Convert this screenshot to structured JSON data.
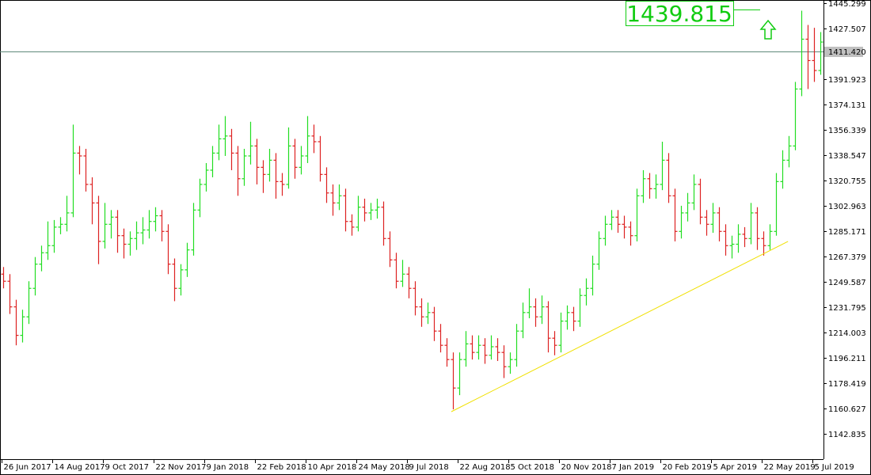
{
  "chart_data": {
    "type": "ohlc",
    "up_color": "#22dd22",
    "down_color": "#dd2222",
    "xlim": [
      -0.5,
      129.5
    ],
    "ylim": [
      1125.04,
      1447.52
    ],
    "xticks": [
      {
        "value": 0,
        "label": "26 Jun 2017"
      },
      {
        "value": 8,
        "label": "14 Aug 2017"
      },
      {
        "value": 16,
        "label": "9 Oct 2017"
      },
      {
        "value": 24,
        "label": "22 Nov 2017"
      },
      {
        "value": 32,
        "label": "9 Jan 2018"
      },
      {
        "value": 40,
        "label": "22 Feb 2018"
      },
      {
        "value": 48,
        "label": "10 Apr 2018"
      },
      {
        "value": 56,
        "label": "24 May 2018"
      },
      {
        "value": 64,
        "label": "9 Jul 2018"
      },
      {
        "value": 72,
        "label": "22 Aug 2018"
      },
      {
        "value": 80,
        "label": "5 Oct 2018"
      },
      {
        "value": 88,
        "label": "20 Nov 2018"
      },
      {
        "value": 96,
        "label": "7 Jan 2019"
      },
      {
        "value": 104,
        "label": "20 Feb 2019"
      },
      {
        "value": 112,
        "label": "5 Apr 2019"
      },
      {
        "value": 120,
        "label": "22 May 2019"
      },
      {
        "value": 128,
        "label": "5 Jul 2019"
      }
    ],
    "yticks": [
      1445.299,
      1427.507,
      1391.923,
      1374.131,
      1356.339,
      1338.547,
      1320.755,
      1302.963,
      1285.171,
      1267.379,
      1249.587,
      1231.795,
      1214.003,
      1196.211,
      1178.419,
      1160.627,
      1142.835
    ],
    "open": [
      1255,
      1250,
      1232,
      1212,
      1225,
      1245,
      1262,
      1270,
      1275,
      1288,
      1290,
      1298,
      1340,
      1338,
      1318,
      1305,
      1278,
      1290,
      1295,
      1282,
      1276,
      1280,
      1284,
      1286,
      1292,
      1296,
      1285,
      1262,
      1245,
      1258,
      1272,
      1300,
      1318,
      1328,
      1340,
      1350,
      1352,
      1340,
      1322,
      1338,
      1345,
      1330,
      1325,
      1335,
      1320,
      1318,
      1345,
      1330,
      1338,
      1352,
      1348,
      1325,
      1312,
      1305,
      1310,
      1292,
      1288,
      1302,
      1298,
      1300,
      1302,
      1280,
      1265,
      1250,
      1255,
      1245,
      1232,
      1225,
      1228,
      1215,
      1205,
      1195,
      1175,
      1195,
      1206,
      1200,
      1205,
      1198,
      1204,
      1200,
      1190,
      1195,
      1215,
      1228,
      1232,
      1225,
      1232,
      1210,
      1205,
      1222,
      1228,
      1222,
      1240,
      1245,
      1262,
      1280,
      1290,
      1295,
      1290,
      1288,
      1282,
      1310,
      1322,
      1315,
      1318,
      1335,
      1310,
      1285,
      1298,
      1305,
      1318,
      1295,
      1290,
      1298,
      1285,
      1275,
      1276,
      1283,
      1280,
      1298,
      1280,
      1275,
      1285,
      1320,
      1335,
      1345,
      1385,
      1420,
      1405,
      1398
    ],
    "high": [
      1260,
      1255,
      1237,
      1230,
      1250,
      1267,
      1275,
      1292,
      1293,
      1295,
      1310,
      1360,
      1345,
      1343,
      1323,
      1310,
      1305,
      1300,
      1300,
      1287,
      1285,
      1292,
      1295,
      1300,
      1302,
      1300,
      1290,
      1266,
      1262,
      1277,
      1305,
      1322,
      1333,
      1345,
      1360,
      1366,
      1357,
      1345,
      1343,
      1362,
      1350,
      1335,
      1343,
      1340,
      1326,
      1358,
      1350,
      1345,
      1366,
      1360,
      1352,
      1330,
      1318,
      1318,
      1315,
      1297,
      1310,
      1308,
      1305,
      1308,
      1306,
      1285,
      1270,
      1265,
      1260,
      1250,
      1238,
      1235,
      1232,
      1220,
      1210,
      1200,
      1200,
      1215,
      1212,
      1212,
      1210,
      1212,
      1210,
      1205,
      1200,
      1220,
      1235,
      1245,
      1238,
      1240,
      1236,
      1215,
      1228,
      1233,
      1232,
      1245,
      1252,
      1268,
      1285,
      1296,
      1300,
      1300,
      1296,
      1292,
      1315,
      1328,
      1326,
      1325,
      1348,
      1340,
      1315,
      1303,
      1312,
      1325,
      1322,
      1300,
      1305,
      1302,
      1290,
      1282,
      1290,
      1288,
      1305,
      1302,
      1285,
      1290,
      1326,
      1342,
      1352,
      1390,
      1440,
      1430,
      1428,
      1425
    ],
    "low": [
      1245,
      1227,
      1205,
      1207,
      1220,
      1240,
      1257,
      1265,
      1270,
      1283,
      1285,
      1295,
      1325,
      1313,
      1290,
      1262,
      1273,
      1280,
      1270,
      1266,
      1268,
      1272,
      1276,
      1280,
      1285,
      1278,
      1255,
      1236,
      1240,
      1253,
      1268,
      1295,
      1313,
      1323,
      1335,
      1338,
      1328,
      1310,
      1317,
      1332,
      1318,
      1312,
      1320,
      1308,
      1310,
      1315,
      1322,
      1325,
      1333,
      1340,
      1320,
      1305,
      1296,
      1300,
      1285,
      1282,
      1285,
      1292,
      1293,
      1294,
      1275,
      1260,
      1245,
      1246,
      1238,
      1226,
      1218,
      1220,
      1208,
      1200,
      1190,
      1160,
      1170,
      1190,
      1195,
      1195,
      1192,
      1195,
      1194,
      1182,
      1185,
      1190,
      1210,
      1224,
      1218,
      1220,
      1200,
      1198,
      1200,
      1216,
      1215,
      1218,
      1233,
      1240,
      1258,
      1275,
      1286,
      1284,
      1280,
      1275,
      1278,
      1305,
      1308,
      1308,
      1314,
      1305,
      1278,
      1280,
      1292,
      1300,
      1290,
      1282,
      1284,
      1278,
      1268,
      1266,
      1270,
      1274,
      1276,
      1272,
      1268,
      1272,
      1282,
      1315,
      1330,
      1342,
      1380,
      1385,
      1390,
      1395
    ],
    "close": [
      1250,
      1232,
      1212,
      1225,
      1245,
      1262,
      1270,
      1275,
      1288,
      1290,
      1298,
      1340,
      1338,
      1318,
      1305,
      1278,
      1290,
      1295,
      1282,
      1276,
      1280,
      1284,
      1286,
      1292,
      1296,
      1285,
      1262,
      1245,
      1258,
      1272,
      1300,
      1318,
      1328,
      1340,
      1350,
      1352,
      1340,
      1322,
      1338,
      1345,
      1330,
      1325,
      1335,
      1320,
      1318,
      1345,
      1330,
      1338,
      1352,
      1348,
      1325,
      1312,
      1305,
      1310,
      1292,
      1288,
      1302,
      1298,
      1300,
      1302,
      1280,
      1265,
      1250,
      1255,
      1245,
      1232,
      1225,
      1228,
      1215,
      1205,
      1195,
      1175,
      1195,
      1206,
      1200,
      1205,
      1198,
      1204,
      1200,
      1190,
      1195,
      1215,
      1228,
      1232,
      1225,
      1232,
      1210,
      1205,
      1222,
      1228,
      1222,
      1240,
      1245,
      1262,
      1280,
      1290,
      1295,
      1290,
      1288,
      1282,
      1310,
      1322,
      1315,
      1318,
      1335,
      1310,
      1285,
      1298,
      1305,
      1318,
      1295,
      1290,
      1298,
      1285,
      1275,
      1276,
      1283,
      1280,
      1298,
      1280,
      1275,
      1285,
      1320,
      1335,
      1345,
      1385,
      1420,
      1405,
      1398,
      1418
    ],
    "current_price": {
      "value": 1411.42,
      "label": "1411.420"
    },
    "trendline": {
      "x": [
        70.75,
        123.9
      ],
      "y": [
        1158.4,
        1277.95
      ],
      "color": "#f0e000"
    },
    "annotation": {
      "text": "1439.815",
      "color": "#11cc11"
    }
  }
}
